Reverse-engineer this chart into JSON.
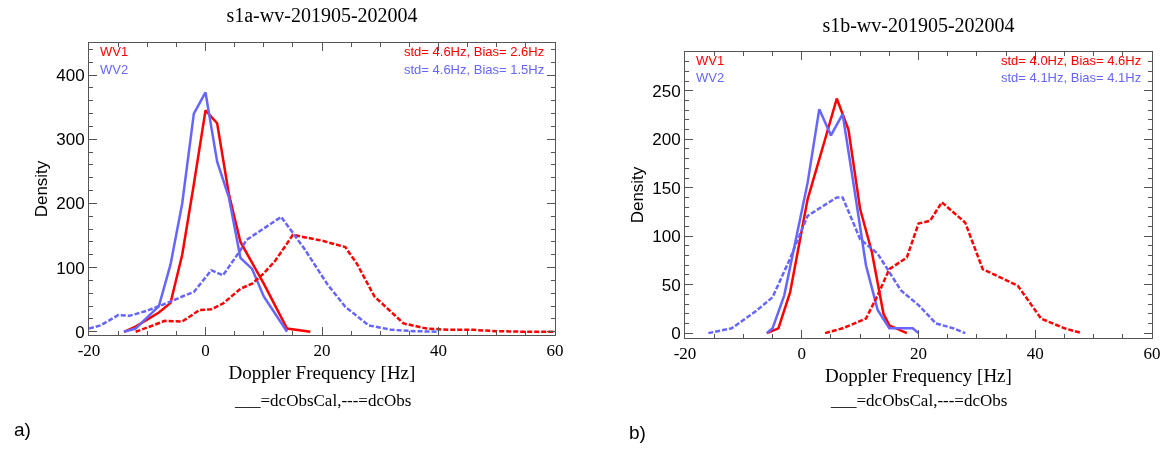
{
  "chart_data": [
    {
      "type": "line",
      "title": "s1a-wv-201905-202004",
      "xlabel": "Doppler Frequency [Hz]",
      "ylabel": "Density",
      "xlim": [
        -20,
        60
      ],
      "xticks": [
        -20,
        0,
        20,
        40,
        60
      ],
      "ylim": [
        -5,
        450
      ],
      "yticks": [
        0,
        100,
        200,
        300,
        400
      ],
      "grid": false,
      "annotations": [
        "std= 4.6Hz, Bias= 2.6Hz",
        "std= 4.6Hz, Bias= 1.5Hz",
        "___=dcObsCal,---=dcObs",
        "a)"
      ],
      "series": [
        {
          "name": "WV1",
          "color": "#ff0000",
          "line_style": "solid",
          "x": [
            -14,
            -12,
            -8,
            -6,
            -4,
            -2,
            0,
            2,
            4,
            6,
            10,
            14,
            18
          ],
          "values": [
            0,
            8,
            30,
            45,
            120,
            230,
            345,
            325,
            215,
            140,
            75,
            5,
            0
          ]
        },
        {
          "name": "WV2",
          "color": "#6666ff",
          "line_style": "solid",
          "x": [
            -14,
            -12,
            -8,
            -6,
            -4,
            -2,
            0,
            2,
            4,
            6,
            8,
            10,
            14
          ],
          "values": [
            0,
            5,
            40,
            105,
            200,
            340,
            373,
            265,
            210,
            115,
            98,
            55,
            0
          ]
        },
        {
          "color": "#ff0000",
          "line_style": "dashed",
          "x": [
            -12,
            -9,
            -7,
            -4,
            -1,
            1,
            3,
            6,
            8,
            10,
            12,
            15,
            20,
            24,
            26,
            29,
            34,
            38,
            42,
            46,
            50,
            55,
            60
          ],
          "values": [
            0,
            10,
            17,
            16,
            34,
            35,
            44,
            67,
            75,
            91,
            111,
            151,
            142,
            132,
            106,
            55,
            13,
            5,
            3,
            3,
            1,
            0,
            0
          ]
        },
        {
          "color": "#6666ff",
          "line_style": "dashed",
          "x": [
            -20,
            -18,
            -15,
            -13,
            -10,
            -6,
            -4,
            -2,
            1,
            3,
            6,
            7,
            13,
            17,
            21,
            24,
            28,
            32,
            36,
            40
          ],
          "values": [
            5,
            10,
            26,
            25,
            33,
            47,
            55,
            62,
            96,
            88,
            127,
            143,
            179,
            129,
            73,
            39,
            10,
            3,
            1,
            0
          ]
        }
      ]
    },
    {
      "type": "line",
      "title": "s1b-wv-201905-202004",
      "xlabel": "Doppler Frequency [Hz]",
      "ylabel": "Density",
      "xlim": [
        -20,
        60
      ],
      "xticks": [
        -20,
        0,
        20,
        40,
        60
      ],
      "ylim": [
        -5,
        290
      ],
      "yticks": [
        0,
        50,
        100,
        150,
        200,
        250
      ],
      "grid": false,
      "annotations": [
        "std= 4.0Hz, Bias= 4.6Hz",
        "std= 4.1Hz, Bias= 4.1Hz",
        "___=dcObsCal,---=dcObs",
        "b)"
      ],
      "series": [
        {
          "name": "WV1",
          "color": "#ff0000",
          "line_style": "solid",
          "x": [
            -6,
            -4,
            -2,
            1,
            4,
            6,
            8,
            10,
            12,
            14,
            15,
            18
          ],
          "values": [
            0,
            5,
            42,
            138,
            200,
            242,
            210,
            128,
            84,
            20,
            8,
            0
          ]
        },
        {
          "name": "WV2",
          "color": "#6666ff",
          "line_style": "solid",
          "x": [
            -6,
            -5,
            -3,
            1,
            3,
            5,
            7,
            9,
            11,
            13,
            15,
            19,
            20
          ],
          "values": [
            0,
            5,
            39,
            155,
            231,
            204,
            226,
            149,
            70,
            24,
            5,
            5,
            0
          ]
        },
        {
          "color": "#ff0000",
          "line_style": "dashed",
          "x": [
            4,
            7,
            11,
            13,
            15,
            18,
            20,
            22,
            24,
            28,
            31,
            37,
            41,
            45,
            48
          ],
          "values": [
            0,
            5,
            15,
            39,
            66,
            78,
            113,
            116,
            135,
            114,
            66,
            49,
            15,
            5,
            0
          ]
        },
        {
          "color": "#6666ff",
          "line_style": "dashed",
          "x": [
            -16,
            -12,
            -8,
            -5,
            -2,
            1,
            6,
            7,
            10,
            13,
            17,
            20,
            23,
            26,
            28
          ],
          "values": [
            0,
            5,
            22,
            37,
            77,
            121,
            140,
            140,
            97,
            82,
            44,
            29,
            10,
            5,
            0
          ]
        }
      ]
    }
  ]
}
